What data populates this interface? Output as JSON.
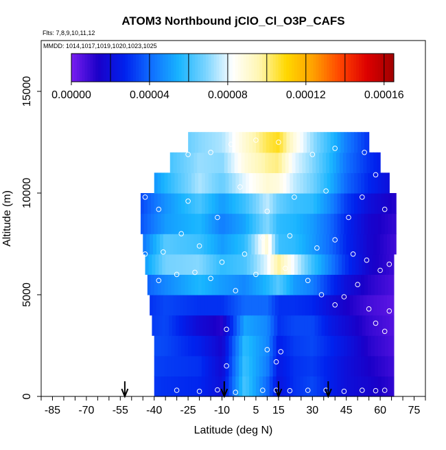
{
  "chart_data": {
    "type": "heatmap",
    "title": "ATOM3 Northbound jClO_Cl_O3P_CAFS",
    "subtitle_flights": "Flts: 7,8,9,10,11,12",
    "subtitle_dates": "MMDD: 1014,1017,1019,1020,1023,1025",
    "xlabel": "Latitude (deg N)",
    "ylabel": "Altitude (m)",
    "xlim": [
      -90,
      80
    ],
    "ylim": [
      0,
      17500
    ],
    "x_tick_labels": [
      "-85",
      "-70",
      "-55",
      "-40",
      "-25",
      "-10",
      "5",
      "15",
      "30",
      "45",
      "60",
      "75"
    ],
    "y_tick_labels": [
      "0",
      "5000",
      "10000",
      "15000"
    ],
    "colorbar": {
      "range": [
        0,
        0.000165
      ],
      "tick_labels": [
        "0.00000",
        "0.00004",
        "0.00008",
        "0.00012",
        "0.00016"
      ],
      "colors": [
        "#7a1ff0",
        "#1a00c8",
        "#0022ee",
        "#1070ff",
        "#18b4ff",
        "#7ad4ff",
        "#ffffff",
        "#fff6b0",
        "#ffd800",
        "#ffa000",
        "#ff4400",
        "#dd0000",
        "#a00000"
      ]
    },
    "arrow_latitudes": [
      -53,
      -9,
      15,
      37
    ],
    "altitude_bins_m": [
      0,
      1000,
      2000,
      3000,
      4000,
      5000,
      6000,
      7000,
      8000,
      9000,
      10000,
      11000,
      12000
    ],
    "band_latitude_ranges": [
      [
        -40,
        66
      ],
      [
        -40,
        66
      ],
      [
        -40,
        66
      ],
      [
        -41,
        66
      ],
      [
        -42,
        66
      ],
      [
        -43,
        66
      ],
      [
        -44,
        66
      ],
      [
        -45,
        67
      ],
      [
        -46,
        67
      ],
      [
        -46,
        67
      ],
      [
        -40,
        64
      ],
      [
        -33,
        60
      ],
      [
        -25,
        55
      ]
    ],
    "latitude_profile_nodes": [
      -46,
      -35,
      -20,
      -10,
      0,
      10,
      15,
      22,
      30,
      38,
      45,
      55,
      67
    ],
    "values_by_altitude_bin": [
      [
        3.2e-05,
        3e-05,
        2.8e-05,
        2e-05,
        6.2e-05,
        4e-05,
        2.2e-05,
        3e-05,
        3.4e-05,
        2.6e-05,
        2e-05,
        1.6e-05,
        1e-05
      ],
      [
        3.4e-05,
        3.2e-05,
        3e-05,
        1.8e-05,
        6e-05,
        4.4e-05,
        2.4e-05,
        3e-05,
        3.2e-05,
        2.6e-05,
        2e-05,
        1.4e-05,
        8e-06
      ],
      [
        3.6e-05,
        3.4e-05,
        2.6e-05,
        1.6e-05,
        5.8e-05,
        4.6e-05,
        2.6e-05,
        3.2e-05,
        3.4e-05,
        2.8e-05,
        2.2e-05,
        1.2e-05,
        6e-06
      ],
      [
        3e-05,
        3.4e-05,
        1.8e-05,
        1.2e-05,
        5.2e-05,
        4.6e-05,
        3e-05,
        3.4e-05,
        3.4e-05,
        2.4e-05,
        1.8e-05,
        1e-05,
        5e-06
      ],
      [
        2.8e-05,
        3.4e-05,
        3e-05,
        3e-05,
        4e-05,
        4e-05,
        3e-05,
        3e-05,
        2.8e-05,
        2e-05,
        1.4e-05,
        8e-06,
        4e-06
      ],
      [
        3.6e-05,
        4.6e-05,
        5.6e-05,
        5e-05,
        4.6e-05,
        5.6e-05,
        6.4e-05,
        5e-05,
        4.4e-05,
        3e-05,
        2e-05,
        1.2e-05,
        6e-06
      ],
      [
        4.6e-05,
        6.8e-05,
        7e-05,
        5.8e-05,
        6.2e-05,
        8e-05,
        9.8e-05,
        8e-05,
        6e-05,
        4.4e-05,
        3e-05,
        1.6e-05,
        8e-06
      ],
      [
        4e-05,
        6.4e-05,
        6e-05,
        5e-05,
        5.8e-05,
        9e-05,
        6e-05,
        5.8e-05,
        5e-05,
        4e-05,
        2.8e-05,
        1.6e-05,
        8e-06
      ],
      [
        3.6e-05,
        5e-05,
        5.6e-05,
        4.4e-05,
        5.2e-05,
        7e-05,
        5.8e-05,
        5.6e-05,
        5e-05,
        4e-05,
        2.8e-05,
        1.6e-05,
        1e-05
      ],
      [
        3.4e-05,
        4.8e-05,
        6.2e-05,
        5e-05,
        6e-05,
        7.6e-05,
        6.6e-05,
        6e-05,
        5.8e-05,
        4.6e-05,
        3.2e-05,
        2e-05,
        1.2e-05
      ],
      [
        4e-05,
        5.6e-05,
        7.4e-05,
        6.6e-05,
        8e-05,
        9e-05,
        8.8e-05,
        7.6e-05,
        6.8e-05,
        5.4e-05,
        4e-05,
        2.8e-05,
        1.8e-05
      ],
      [
        4.4e-05,
        6e-05,
        7.2e-05,
        7e-05,
        8.8e-05,
        9.8e-05,
        0.0001,
        8e-05,
        7e-05,
        5.6e-05,
        4.2e-05,
        3e-05,
        2e-05
      ],
      [
        4.8e-05,
        6e-05,
        7e-05,
        7.4e-05,
        9e-05,
        0.000104,
        0.000108,
        8.8e-05,
        7.2e-05,
        5.8e-05,
        4.4e-05,
        3e-05,
        2e-05
      ]
    ],
    "sample_points": [
      [
        -42,
        300
      ],
      [
        -30,
        300
      ],
      [
        -20,
        250
      ],
      [
        -12,
        320
      ],
      [
        -4,
        200
      ],
      [
        8,
        300
      ],
      [
        14,
        300
      ],
      [
        20,
        280
      ],
      [
        28,
        300
      ],
      [
        36,
        300
      ],
      [
        44,
        250
      ],
      [
        52,
        300
      ],
      [
        58,
        280
      ],
      [
        62,
        300
      ],
      [
        -8,
        1500
      ],
      [
        14,
        1700
      ],
      [
        16,
        2200
      ],
      [
        -8,
        3300
      ],
      [
        10,
        2300
      ],
      [
        -46,
        5300
      ],
      [
        -38,
        5700
      ],
      [
        -30,
        6000
      ],
      [
        -22,
        6100
      ],
      [
        -15,
        5800
      ],
      [
        -4,
        5200
      ],
      [
        5,
        6000
      ],
      [
        18,
        6300
      ],
      [
        28,
        5700
      ],
      [
        34,
        5000
      ],
      [
        40,
        4500
      ],
      [
        44,
        4900
      ],
      [
        50,
        5500
      ],
      [
        55,
        4300
      ],
      [
        58,
        3600
      ],
      [
        62,
        3200
      ],
      [
        64,
        4200
      ],
      [
        -44,
        7000
      ],
      [
        -36,
        7100
      ],
      [
        -28,
        8000
      ],
      [
        -20,
        7400
      ],
      [
        -10,
        6600
      ],
      [
        0,
        7000
      ],
      [
        8,
        7800
      ],
      [
        20,
        7900
      ],
      [
        32,
        7300
      ],
      [
        40,
        7700
      ],
      [
        48,
        7000
      ],
      [
        54,
        6700
      ],
      [
        60,
        6200
      ],
      [
        64,
        6500
      ],
      [
        -47,
        7700
      ],
      [
        -44,
        9800
      ],
      [
        -38,
        9200
      ],
      [
        -25,
        9600
      ],
      [
        -12,
        8800
      ],
      [
        -2,
        10300
      ],
      [
        10,
        9100
      ],
      [
        22,
        9800
      ],
      [
        36,
        10100
      ],
      [
        46,
        8800
      ],
      [
        52,
        9800
      ],
      [
        58,
        10900
      ],
      [
        62,
        9200
      ],
      [
        -38,
        11300
      ],
      [
        -25,
        11900
      ],
      [
        -15,
        12000
      ],
      [
        -6,
        12400
      ],
      [
        5,
        12600
      ],
      [
        15,
        12500
      ],
      [
        30,
        11900
      ],
      [
        40,
        12200
      ],
      [
        53,
        12000
      ]
    ]
  }
}
